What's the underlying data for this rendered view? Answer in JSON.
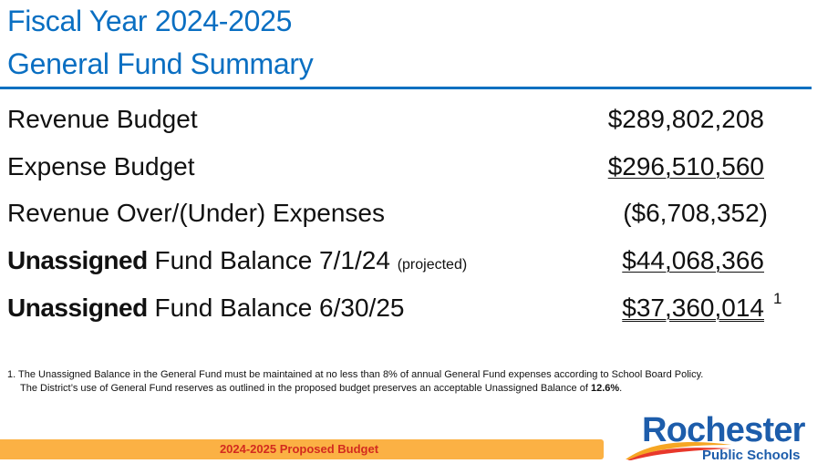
{
  "header": {
    "title_line1": "Fiscal Year 2024-2025",
    "title_line2": "General Fund Summary"
  },
  "rows": [
    {
      "label": "Revenue Budget",
      "amount": "$289,802,208"
    },
    {
      "label": "Expense Budget",
      "amount": "$296,510,560"
    },
    {
      "label": "Revenue Over/(Under) Expenses",
      "amount": "($6,708,352)"
    },
    {
      "label_bold": "Unassigned",
      "label": " Fund Balance 7/1/24 ",
      "label_small": "(projected)",
      "amount": "$44,068,366"
    },
    {
      "label_bold": "Unassigned",
      "label": " Fund Balance 6/30/25",
      "amount": "$37,360,014",
      "marker": "1"
    }
  ],
  "footnote": {
    "line1": "1. The Unassigned Balance in the General Fund must be maintained at no less than 8% of annual General Fund expenses according to School Board Policy.",
    "line2_prefix": "The District’s use of General Fund reserves as outlined in the proposed budget preserves an acceptable Unassigned Balance of ",
    "line2_value": "12.6%",
    "line2_suffix": "."
  },
  "footer": {
    "bar_text": "2024-2025 Proposed Budget"
  },
  "logo": {
    "name": "Rochester",
    "sub": "Public Schools",
    "swoosh_colors": [
      "#f6a623",
      "#e8382b"
    ]
  },
  "colors": {
    "title": "#0a6fc2",
    "rule": "#0b70c0",
    "footer_bar": "#fbb144",
    "footer_text": "#d32b1f",
    "logo": "#1d5dab"
  }
}
